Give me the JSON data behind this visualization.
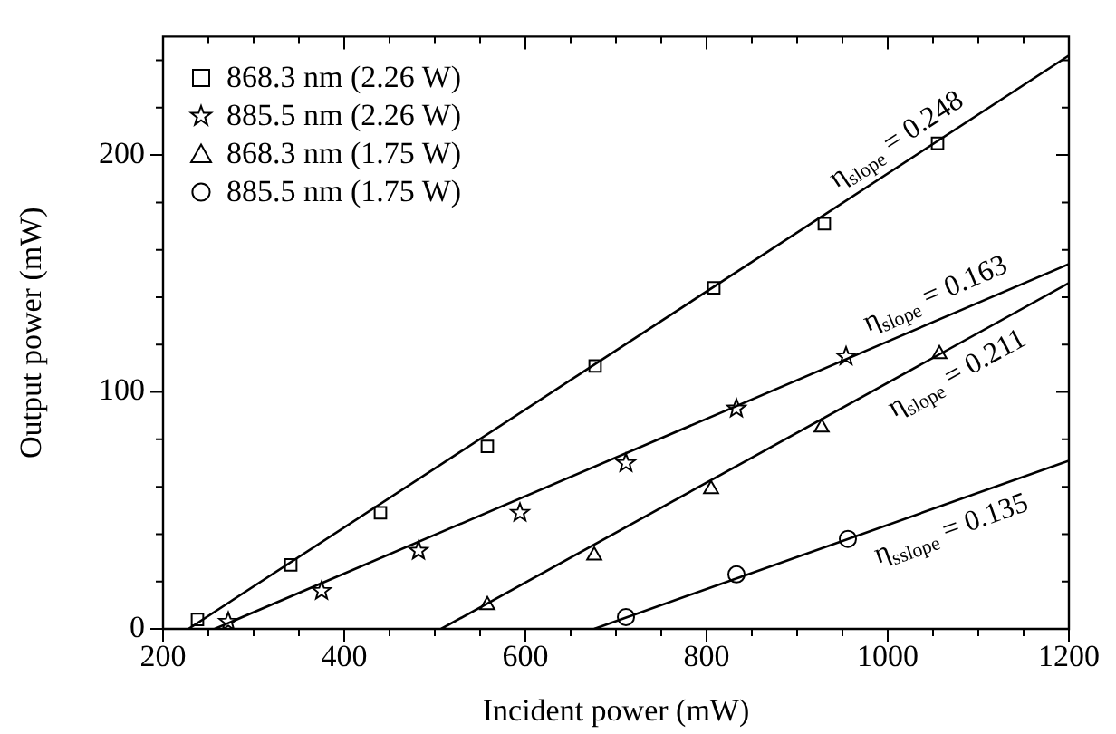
{
  "chart_data": {
    "type": "scatter",
    "xlabel": "Incident power (mW)",
    "ylabel": "Output power (mW)",
    "xlim": [
      200,
      1200
    ],
    "ylim": [
      0,
      250
    ],
    "xticks": [
      200,
      {
        "value": 250,
        "label": null
      },
      {
        "value": 300,
        "label": null
      },
      {
        "value": 350,
        "label": null
      },
      400,
      {
        "value": 450,
        "label": null
      },
      {
        "value": 500,
        "label": null
      },
      {
        "value": 550,
        "label": null
      },
      600,
      {
        "value": 650,
        "label": null
      },
      {
        "value": 700,
        "label": null
      },
      {
        "value": 750,
        "label": null
      },
      800,
      {
        "value": 850,
        "label": null
      },
      {
        "value": 900,
        "label": null
      },
      {
        "value": 950,
        "label": null
      },
      1000,
      {
        "value": 1050,
        "label": null
      },
      {
        "value": 1100,
        "label": null
      },
      {
        "value": 1150,
        "label": null
      },
      1200
    ],
    "yticks": [
      0,
      {
        "value": 20,
        "label": null
      },
      {
        "value": 40,
        "label": null
      },
      {
        "value": 60,
        "label": null
      },
      {
        "value": 80,
        "label": null
      },
      100,
      {
        "value": 120,
        "label": null
      },
      {
        "value": 140,
        "label": null
      },
      {
        "value": 160,
        "label": null
      },
      {
        "value": 180,
        "label": null
      },
      200,
      {
        "value": 220,
        "label": null
      },
      {
        "value": 240,
        "label": null
      }
    ],
    "grid": false,
    "legend": "top left",
    "series": [
      {
        "name": "868.3 nm (2.26 W)",
        "marker": "square",
        "color": "#000000",
        "x": [
          238,
          341,
          440,
          558,
          677,
          808,
          930,
          1055
        ],
        "values": [
          4,
          27,
          49,
          77,
          111,
          144,
          171,
          205
        ]
      },
      {
        "name": "885.5 nm (2.26 W)",
        "marker": "star",
        "color": "#000000",
        "x": [
          272,
          375,
          482,
          594,
          711,
          833,
          954
        ],
        "values": [
          3,
          16,
          33,
          49,
          70,
          93,
          115
        ]
      },
      {
        "name": "868.3 nm (1.75 W)",
        "marker": "triangle",
        "color": "#000000",
        "x": [
          558,
          676,
          805,
          927,
          1057
        ],
        "values": [
          10,
          31,
          59,
          85,
          116
        ]
      },
      {
        "name": "885.5 nm (1.75 W)",
        "marker": "circle",
        "color": "#000000",
        "x": [
          711,
          833,
          956
        ],
        "values": [
          5,
          23,
          38
        ]
      },
      {
        "type": "line",
        "marker": "none",
        "color": "#000000",
        "x": [
          228,
          1200
        ],
        "values": [
          0,
          242
        ]
      },
      {
        "type": "line",
        "marker": "none",
        "color": "#000000",
        "x": [
          257,
          1200
        ],
        "values": [
          0,
          154
        ]
      },
      {
        "type": "line",
        "marker": "none",
        "color": "#000000",
        "x": [
          507,
          1200
        ],
        "values": [
          0,
          146
        ]
      },
      {
        "type": "line",
        "marker": "none",
        "color": "#000000",
        "x": [
          676,
          1200
        ],
        "values": [
          0,
          71
        ]
      }
    ],
    "annotations": [
      {
        "text": "η$_{slope}$ = 0.248",
        "x": 1024,
        "y": 198
      },
      {
        "text": "η$_{slope}$ = 0.163",
        "x": 1063,
        "y": 132
      },
      {
        "text": "η$_{slope}$ = 0.211",
        "x": 1063,
        "y": 117
      },
      {
        "text": "η$_{sslope}$ = 0.135",
        "x": 1061,
        "y": 52
      }
    ]
  }
}
